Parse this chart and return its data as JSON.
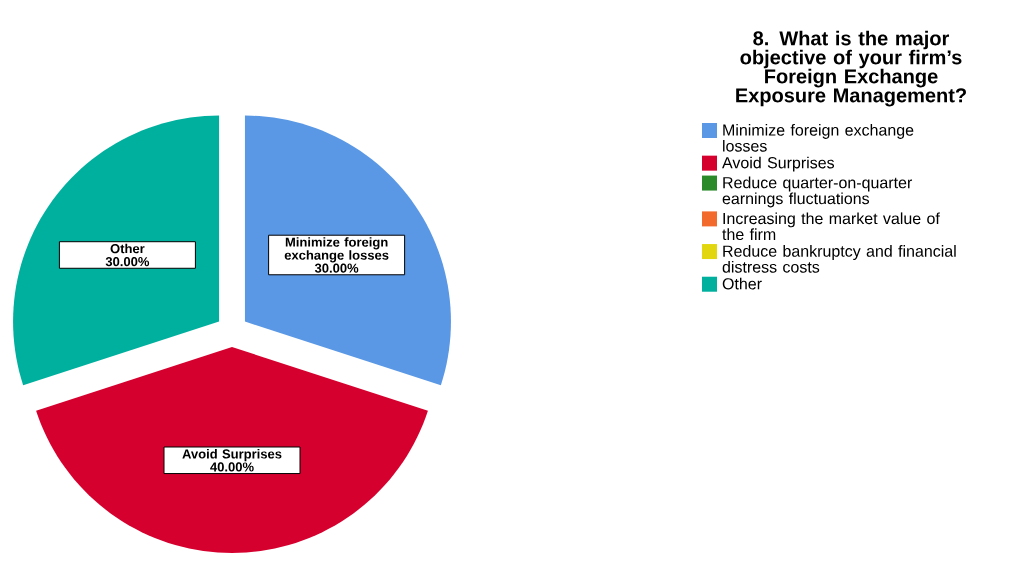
{
  "chart_data": {
    "type": "pie",
    "legend_title": "8. What is the major objective of your firm’s Foreign Exchange Exposure Management?",
    "categories": [
      "Minimize foreign exchange losses",
      "Avoid Surprises",
      "Reduce quarter-on-quarter earnings fluctuations",
      "Increasing the market value of the firm",
      "Reduce bankruptcy and financial distress costs",
      "Other"
    ],
    "values": [
      30,
      40,
      0,
      0,
      0,
      30
    ],
    "value_labels": [
      "30.00%",
      "40.00%",
      null,
      null,
      null,
      "30.00%"
    ],
    "colors": [
      "#5a98e6",
      "#d6002f",
      "#2a8a2a",
      "#f26a2c",
      "#e2d70e",
      "#00b09f"
    ],
    "legend": "right"
  }
}
